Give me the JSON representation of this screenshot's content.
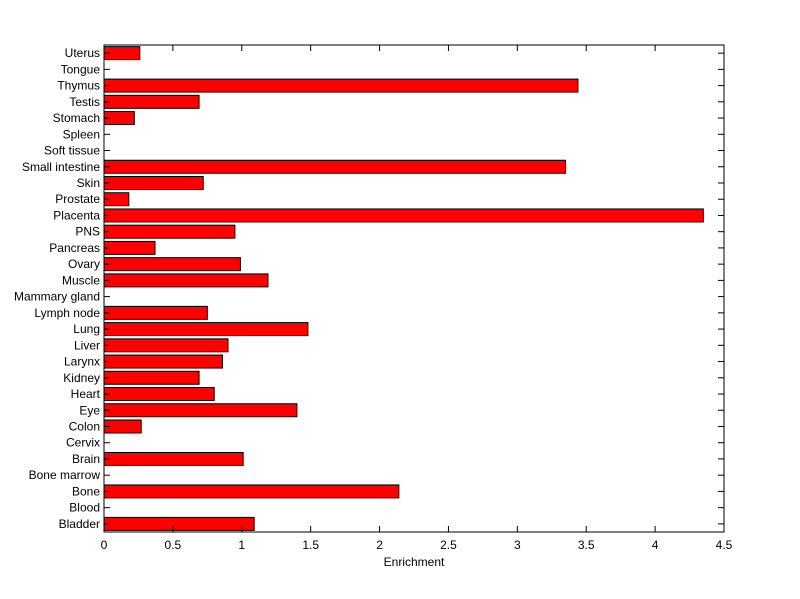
{
  "chart_data": {
    "type": "bar",
    "orientation": "horizontal",
    "title": "",
    "xlabel": "Enrichment",
    "ylabel": "",
    "xlim": [
      0,
      4.5
    ],
    "xticks": [
      0,
      0.5,
      1,
      1.5,
      2,
      2.5,
      3,
      3.5,
      4,
      4.5
    ],
    "xtick_labels": [
      "0",
      "0.5",
      "1",
      "1.5",
      "2",
      "2.5",
      "3",
      "3.5",
      "4",
      "4.5"
    ],
    "grid": false,
    "legend": "none",
    "bar_color": "#ff0000",
    "edge_color": "#000000",
    "categories": [
      "Bladder",
      "Blood",
      "Bone",
      "Bone marrow",
      "Brain",
      "Cervix",
      "Colon",
      "Eye",
      "Heart",
      "Kidney",
      "Larynx",
      "Liver",
      "Lung",
      "Lymph node",
      "Mammary gland",
      "Muscle",
      "Ovary",
      "Pancreas",
      "PNS",
      "Placenta",
      "Prostate",
      "Skin",
      "Small intestine",
      "Soft tissue",
      "Spleen",
      "Stomach",
      "Testis",
      "Thymus",
      "Tongue",
      "Uterus"
    ],
    "values": [
      1.09,
      0,
      2.14,
      0,
      1.01,
      0,
      0.27,
      1.4,
      0.8,
      0.69,
      0.86,
      0.9,
      1.48,
      0.75,
      0,
      1.19,
      0.99,
      0.37,
      0.95,
      4.35,
      0.18,
      0.72,
      3.35,
      0,
      0,
      0.22,
      0.69,
      3.44,
      0,
      0.26
    ]
  }
}
